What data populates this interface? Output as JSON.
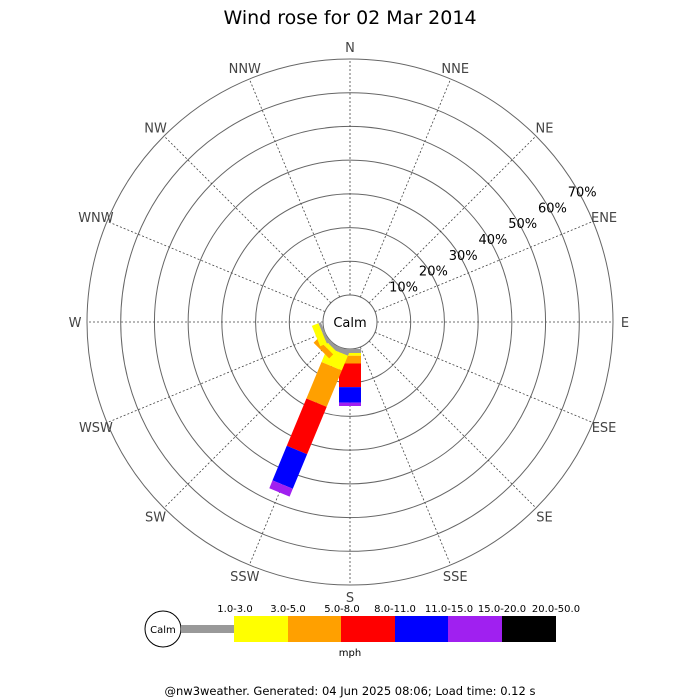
{
  "chart_data": {
    "type": "wind-rose",
    "title": "Wind rose for 02 Mar 2014",
    "directions": [
      "N",
      "NNE",
      "NE",
      "ENE",
      "E",
      "ESE",
      "SE",
      "SSE",
      "S",
      "SSW",
      "SW",
      "WSW",
      "W",
      "WNW",
      "NW",
      "NNW"
    ],
    "ring_labels": [
      "10%",
      "20%",
      "30%",
      "40%",
      "50%",
      "60%",
      "70%"
    ],
    "ring_values": [
      10,
      20,
      30,
      40,
      50,
      60,
      70
    ],
    "rmax": 70,
    "calm_label": "Calm",
    "unit": "mph",
    "speed_bins": [
      {
        "label": "1.0-3.0",
        "color": "#999999"
      },
      {
        "label": "3.0-5.0",
        "color": "#ffff00"
      },
      {
        "label": "5.0-8.0",
        "color": "#ffa000"
      },
      {
        "label": "8.0-11.0",
        "color": "#ff0000"
      },
      {
        "label": "11.0-15.0",
        "color": "#0000ff"
      },
      {
        "label": "15.0-20.0",
        "color": "#a020f0"
      },
      {
        "label": "20.0-50.0",
        "color": "#000000"
      }
    ],
    "series": [
      {
        "direction": "S",
        "values": [
          1.2,
          0.8,
          2.3,
          7.0,
          4.6,
          1.0,
          0
        ]
      },
      {
        "direction": "SSW",
        "values": [
          1.5,
          4.7,
          11.7,
          15.2,
          11.1,
          2.5,
          0
        ]
      },
      {
        "direction": "SW",
        "values": [
          1.0,
          1.3,
          1.7,
          0,
          0,
          0,
          0
        ]
      },
      {
        "direction": "WSW",
        "values": [
          0.8,
          2.1,
          0,
          0,
          0,
          0,
          0
        ]
      }
    ],
    "grid": true
  },
  "footer": "@nw3weather. Generated: 04 Jun 2025 08:06; Load time: 0.12 s"
}
